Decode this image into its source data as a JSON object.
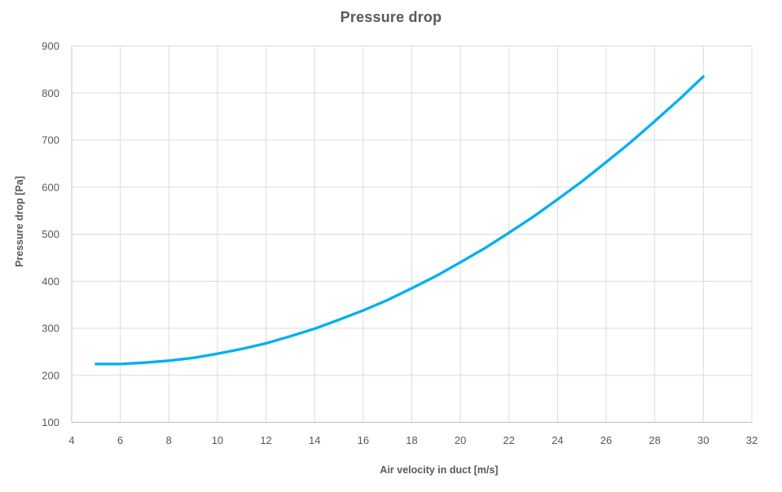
{
  "chart_data": {
    "type": "line",
    "title": "Pressure drop",
    "xlabel": "Air velocity in duct [m/s]",
    "ylabel": "Pressure drop [Pa]",
    "xlim": [
      4,
      32
    ],
    "ylim": [
      100,
      900
    ],
    "x_ticks": [
      4,
      6,
      8,
      10,
      12,
      14,
      16,
      18,
      20,
      22,
      24,
      26,
      28,
      30,
      32
    ],
    "y_ticks": [
      100,
      200,
      300,
      400,
      500,
      600,
      700,
      800,
      900
    ],
    "grid": true,
    "legend": false,
    "colors": {
      "series": "#00b0f0",
      "gridline": "#dcdcdc",
      "axis_line": "#c0c0c0",
      "text": "#595959"
    },
    "series": [
      {
        "name": "Pressure drop",
        "x": [
          5,
          6,
          7,
          8,
          9,
          10,
          11,
          12,
          13,
          14,
          15,
          16,
          17,
          18,
          19,
          20,
          21,
          22,
          23,
          24,
          25,
          26,
          27,
          28,
          29,
          30
        ],
        "y": [
          224,
          224,
          227,
          231,
          237,
          246,
          256,
          268,
          283,
          299,
          318,
          338,
          360,
          385,
          411,
          440,
          470,
          503,
          537,
          574,
          612,
          653,
          695,
          740,
          786,
          835
        ]
      }
    ]
  }
}
